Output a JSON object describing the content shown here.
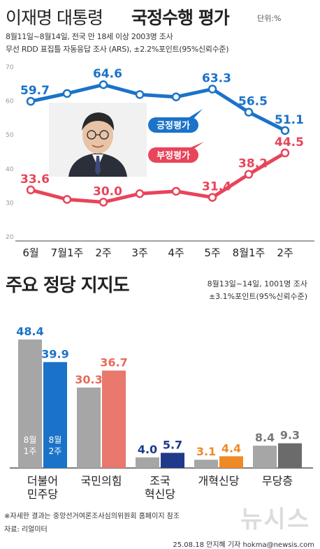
{
  "header": {
    "title_plain": "이재명 대통령",
    "title_bold": "국정수행 평가",
    "unit": "단위:%",
    "survey_line1": "8월11일~8월14일, 전국 만 18세 이상 2003명 조사",
    "survey_line2": "무선 RDD 표집틀 자동응답 조사 (ARS), ±2.2%포인트(95%신뢰수준)"
  },
  "section2": {
    "title": "주요 정당 지지도",
    "survey_line1": "8월13일~14일, 1001명 조사",
    "survey_line2": "±3.1%포인트(95%신뢰수준)"
  },
  "footer": {
    "note": "※자세한 결과는 중앙선거여론조사심의위원회 홈페이지 참조",
    "source": "자료: 리얼미터",
    "credit": "25.08.18 안지혜 기자 hokma@newsis.com",
    "watermark": "뉴시스"
  },
  "colors": {
    "positive": "#1a73c8",
    "negative": "#e8445a",
    "gray_light": "#a6a6a6",
    "gray_dark": "#6b6b6b"
  },
  "chart_data": [
    {
      "type": "line",
      "x": [
        "6월",
        "7월1주",
        "2주",
        "3주",
        "4주",
        "5주",
        "8월1주",
        "2주"
      ],
      "ylim": [
        20,
        70
      ],
      "yticks": [
        20,
        30,
        40,
        50,
        60,
        70
      ],
      "grid": false,
      "series": [
        {
          "name": "긍정평가",
          "values": [
            59.7,
            62.0,
            64.6,
            61.7,
            61.0,
            63.3,
            56.5,
            51.1
          ],
          "labels": [
            "59.7",
            "",
            "64.6",
            "",
            "",
            "63.3",
            "56.5",
            "51.1"
          ],
          "color": "#1a73c8"
        },
        {
          "name": "부정평가",
          "values": [
            33.6,
            30.8,
            30.0,
            32.5,
            33.2,
            31.4,
            38.2,
            44.5
          ],
          "labels": [
            "33.6",
            "",
            "30.0",
            "",
            "",
            "31.4",
            "38.2",
            "44.5"
          ],
          "color": "#e8445a"
        }
      ]
    },
    {
      "type": "bar",
      "categories": [
        [
          "더불어",
          "민주당"
        ],
        [
          "국민의힘"
        ],
        [
          "조국",
          "혁신당"
        ],
        [
          "개혁신당"
        ],
        [
          "무당층"
        ]
      ],
      "series": [
        {
          "name": "8월1주",
          "label_lines": [
            "8월",
            "1주"
          ],
          "values": [
            48.4,
            30.3,
            4.0,
            3.1,
            8.4
          ],
          "colors": [
            "#a6a6a6",
            "#a6a6a6",
            "#a6a6a6",
            "#a6a6a6",
            "#a6a6a6"
          ],
          "label_colors": [
            "#1a73c8",
            "#e86b5a",
            "#1f3a8a",
            "#f08a24",
            "#777777"
          ]
        },
        {
          "name": "8월2주",
          "label_lines": [
            "8월",
            "2주"
          ],
          "values": [
            39.9,
            36.7,
            5.7,
            4.4,
            9.3
          ],
          "colors": [
            "#1a73c8",
            "#e8796c",
            "#1f3a8a",
            "#f08a24",
            "#6b6b6b"
          ],
          "label_colors": [
            "#1a73c8",
            "#e86b5a",
            "#1f3a8a",
            "#f08a24",
            "#777777"
          ]
        }
      ],
      "ylim": [
        0,
        50
      ]
    }
  ]
}
